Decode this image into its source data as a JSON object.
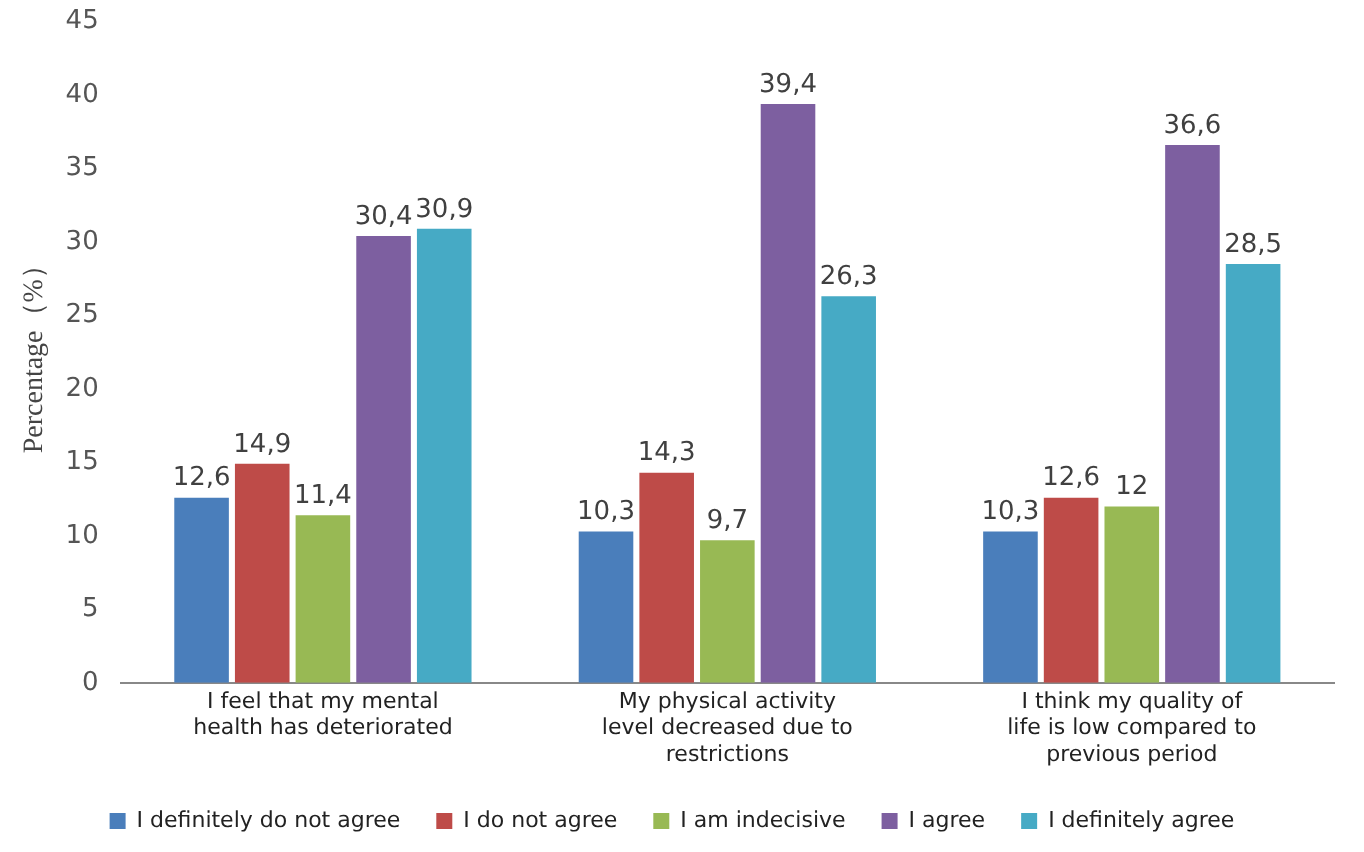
{
  "chart_data": {
    "type": "bar",
    "ylabel": "Percentage（%）",
    "categories": [
      "I feel that my mental health has deteriorated",
      "My physical activity level decreased due to restrictions",
      "I think my quality of life is low compared to previous period"
    ],
    "series": [
      {
        "name": "I definitely do not agree",
        "color": "#4a7ebb",
        "values": [
          12.6,
          10.3,
          10.3
        ],
        "value_labels": [
          "12,6",
          "10,3",
          "10,3"
        ]
      },
      {
        "name": "I do not agree",
        "color": "#be4b48",
        "values": [
          14.9,
          14.3,
          12.6
        ],
        "value_labels": [
          "14,9",
          "14,3",
          "12,6"
        ]
      },
      {
        "name": "I am indecisive",
        "color": "#98b954",
        "values": [
          11.4,
          9.7,
          12
        ],
        "value_labels": [
          "11,4",
          "9,7",
          "12"
        ]
      },
      {
        "name": "I agree",
        "color": "#7d5fa0",
        "values": [
          30.4,
          39.4,
          36.6
        ],
        "value_labels": [
          "30,4",
          "39,4",
          "36,6"
        ]
      },
      {
        "name": "I definitely agree",
        "color": "#46aac5",
        "values": [
          30.9,
          26.3,
          28.5
        ],
        "value_labels": [
          "30,9",
          "26,3",
          "28,5"
        ]
      }
    ],
    "ylim": [
      0,
      45
    ],
    "yticks": [
      0,
      5,
      10,
      15,
      20,
      25,
      30,
      35,
      40,
      45
    ],
    "grid": false,
    "legend": "bottom"
  }
}
